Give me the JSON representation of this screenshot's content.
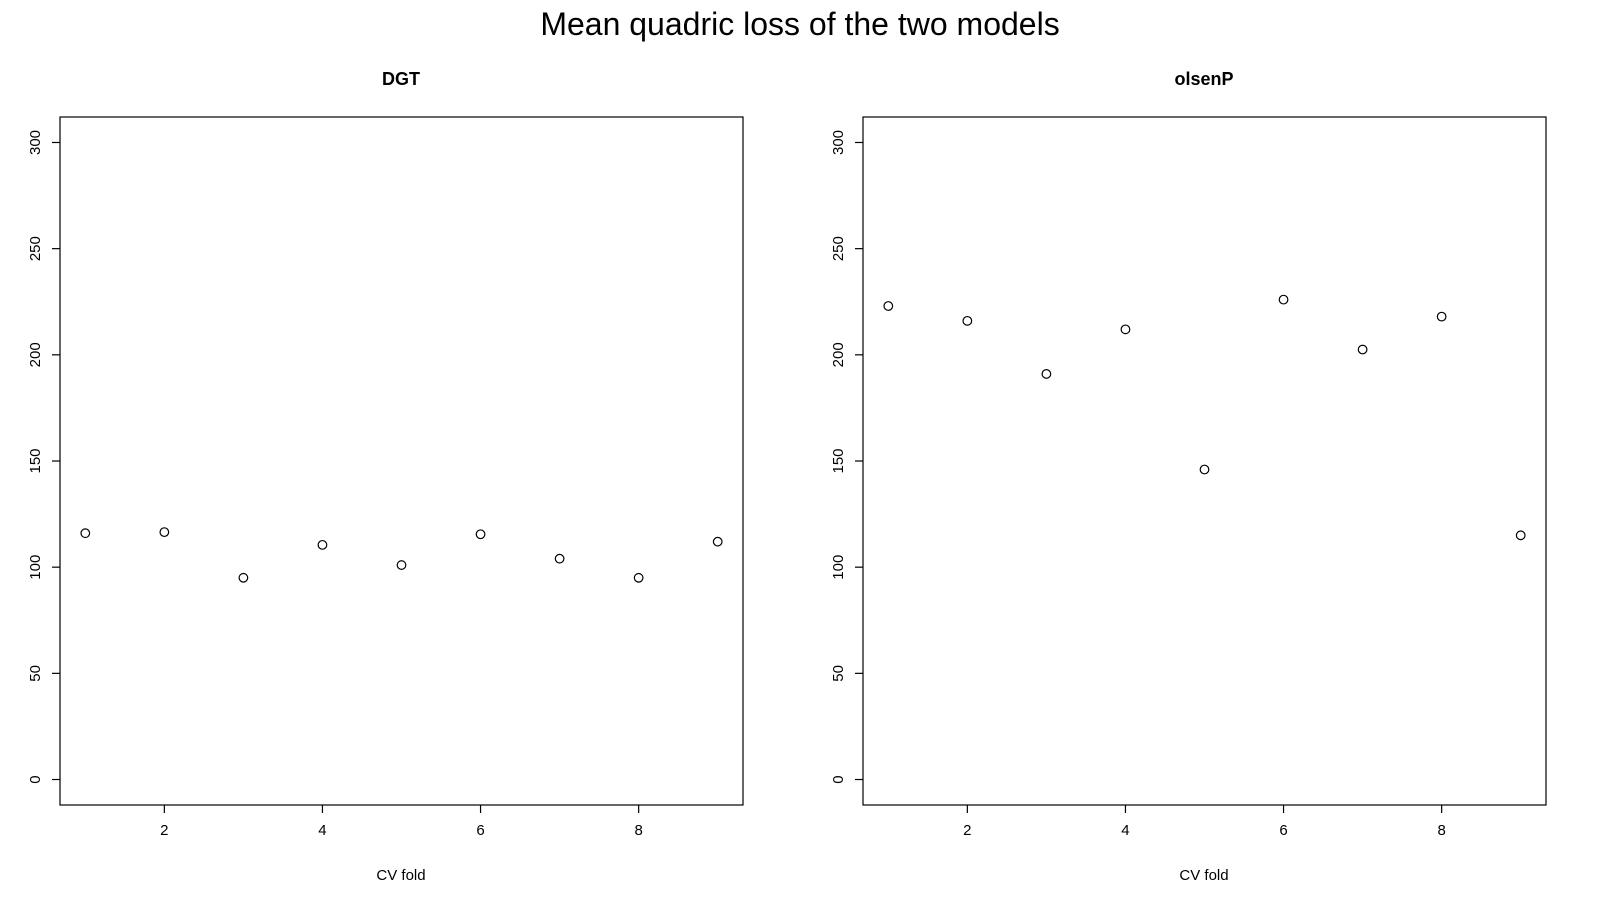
{
  "figure": {
    "title": "Mean quadric loss of the two models"
  },
  "chart_data": [
    {
      "type": "scatter",
      "title": "DGT",
      "xlabel": "CV fold",
      "ylabel": "",
      "x": [
        1,
        2,
        3,
        4,
        5,
        6,
        7,
        8,
        9
      ],
      "y": [
        116,
        116.5,
        95,
        110.5,
        101,
        115.5,
        104,
        95,
        112
      ],
      "xlim": [
        0.68,
        9.32
      ],
      "ylim": [
        -12,
        312
      ],
      "xticks": [
        2,
        4,
        6,
        8
      ],
      "yticks": [
        0,
        50,
        100,
        150,
        200,
        250,
        300
      ],
      "grid": false,
      "marker": "open-circle"
    },
    {
      "type": "scatter",
      "title": "olsenP",
      "xlabel": "CV fold",
      "ylabel": "",
      "x": [
        1,
        2,
        3,
        4,
        5,
        6,
        7,
        8,
        9
      ],
      "y": [
        223,
        216,
        191,
        212,
        146,
        226,
        202.5,
        218,
        115
      ],
      "xlim": [
        0.68,
        9.32
      ],
      "ylim": [
        -12,
        312
      ],
      "xticks": [
        2,
        4,
        6,
        8
      ],
      "yticks": [
        0,
        50,
        100,
        150,
        200,
        250,
        300
      ],
      "grid": false,
      "marker": "open-circle"
    }
  ]
}
